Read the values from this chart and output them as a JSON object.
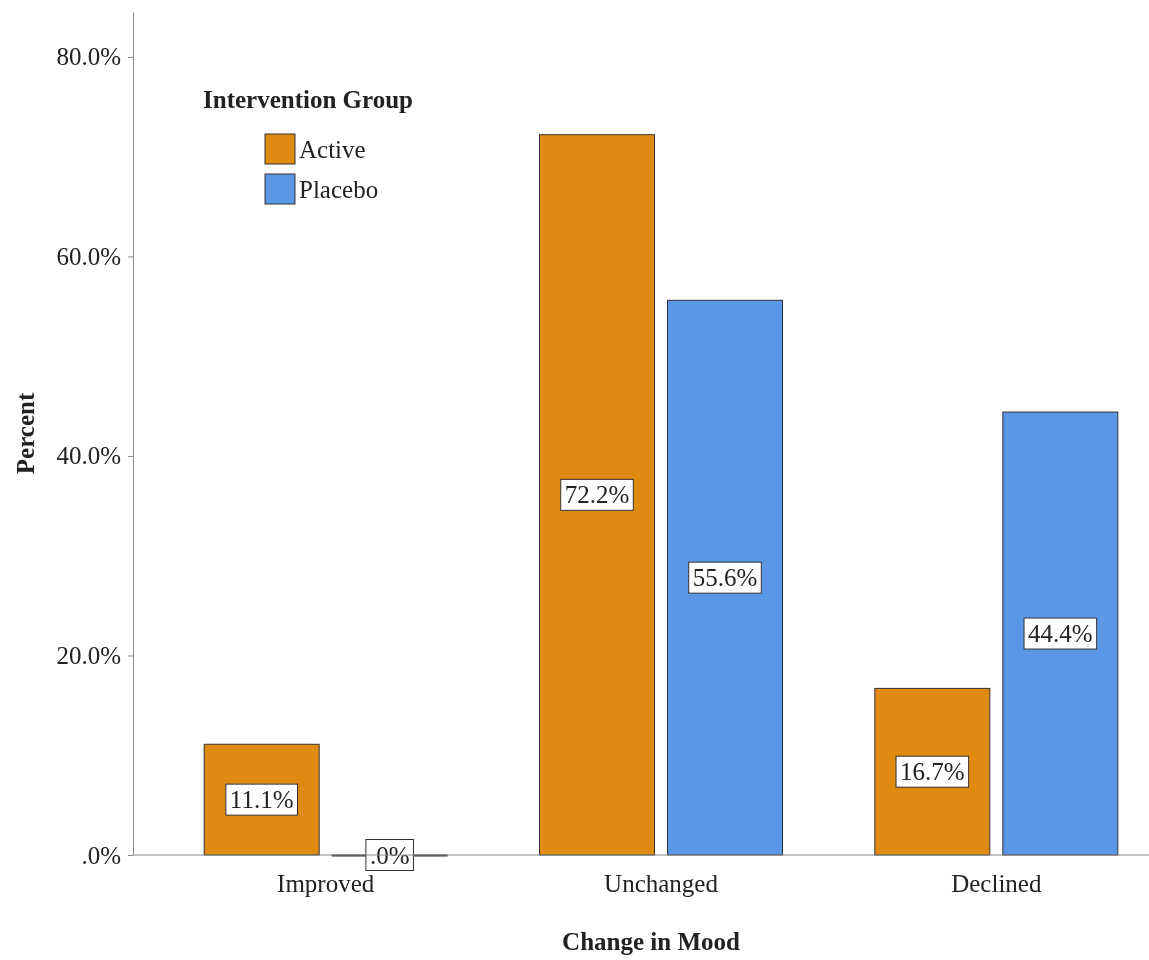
{
  "chart_data": {
    "type": "bar",
    "xlabel": "Change in Mood",
    "ylabel": "Percent",
    "legend_title": "Intervention Group",
    "categories": [
      "Improved",
      "Unchanged",
      "Declined"
    ],
    "series": [
      {
        "name": "Active",
        "color": "#e08a12",
        "values": [
          11.1,
          72.2,
          16.7
        ],
        "value_labels": [
          "11.1%",
          "72.2%",
          "16.7%"
        ]
      },
      {
        "name": "Placebo",
        "color": "#5a97e6",
        "values": [
          0,
          55.6,
          44.4
        ],
        "value_labels": [
          ".0%",
          "55.6%",
          "44.4%"
        ]
      }
    ],
    "ylim": [
      0,
      84.5
    ],
    "yticks": [
      {
        "value": 0,
        "label": ".0%"
      },
      {
        "value": 20,
        "label": "20.0%"
      },
      {
        "value": 40,
        "label": "40.0%"
      },
      {
        "value": 60,
        "label": "60.0%"
      },
      {
        "value": 80,
        "label": "80.0%"
      }
    ],
    "grid": false,
    "legend": "top left"
  }
}
